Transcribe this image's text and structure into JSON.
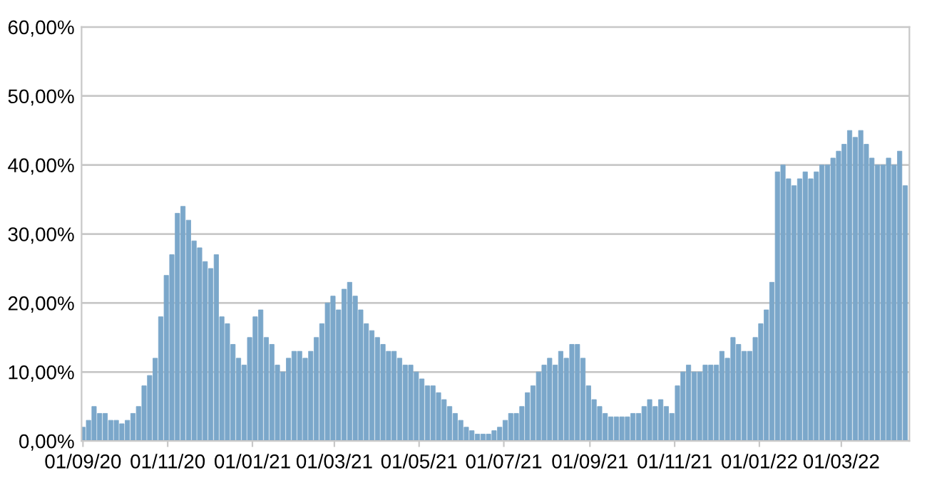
{
  "chart_data": {
    "type": "bar",
    "x": [
      "2020-09-01",
      "2020-09-05",
      "2020-09-09",
      "2020-09-13",
      "2020-09-17",
      "2020-09-21",
      "2020-09-25",
      "2020-09-29",
      "2020-10-03",
      "2020-10-07",
      "2020-10-11",
      "2020-10-15",
      "2020-10-19",
      "2020-10-23",
      "2020-10-27",
      "2020-10-31",
      "2020-11-04",
      "2020-11-08",
      "2020-11-12",
      "2020-11-16",
      "2020-11-20",
      "2020-11-24",
      "2020-11-28",
      "2020-12-02",
      "2020-12-06",
      "2020-12-10",
      "2020-12-14",
      "2020-12-18",
      "2020-12-22",
      "2020-12-26",
      "2020-12-30",
      "2021-01-03",
      "2021-01-07",
      "2021-01-11",
      "2021-01-15",
      "2021-01-19",
      "2021-01-23",
      "2021-01-27",
      "2021-01-31",
      "2021-02-04",
      "2021-02-08",
      "2021-02-12",
      "2021-02-16",
      "2021-02-20",
      "2021-02-24",
      "2021-02-28",
      "2021-03-04",
      "2021-03-08",
      "2021-03-12",
      "2021-03-16",
      "2021-03-20",
      "2021-03-24",
      "2021-03-28",
      "2021-04-01",
      "2021-04-05",
      "2021-04-09",
      "2021-04-13",
      "2021-04-17",
      "2021-04-21",
      "2021-04-25",
      "2021-04-29",
      "2021-05-03",
      "2021-05-07",
      "2021-05-11",
      "2021-05-15",
      "2021-05-19",
      "2021-05-23",
      "2021-05-27",
      "2021-05-31",
      "2021-06-04",
      "2021-06-08",
      "2021-06-12",
      "2021-06-16",
      "2021-06-20",
      "2021-06-24",
      "2021-06-28",
      "2021-07-02",
      "2021-07-06",
      "2021-07-10",
      "2021-07-14",
      "2021-07-18",
      "2021-07-22",
      "2021-07-26",
      "2021-07-30",
      "2021-08-03",
      "2021-08-07",
      "2021-08-11",
      "2021-08-15",
      "2021-08-19",
      "2021-08-23",
      "2021-08-27",
      "2021-08-31",
      "2021-09-04",
      "2021-09-08",
      "2021-09-12",
      "2021-09-16",
      "2021-09-20",
      "2021-09-24",
      "2021-09-28",
      "2021-10-02",
      "2021-10-06",
      "2021-10-10",
      "2021-10-14",
      "2021-10-18",
      "2021-10-22",
      "2021-10-26",
      "2021-10-30",
      "2021-11-03",
      "2021-11-07",
      "2021-11-11",
      "2021-11-15",
      "2021-11-19",
      "2021-11-23",
      "2021-11-27",
      "2021-12-01",
      "2021-12-05",
      "2021-12-09",
      "2021-12-13",
      "2021-12-17",
      "2021-12-21",
      "2021-12-25",
      "2021-12-29",
      "2022-01-02",
      "2022-01-06",
      "2022-01-10",
      "2022-01-14",
      "2022-01-18",
      "2022-01-22",
      "2022-01-26",
      "2022-01-30",
      "2022-02-03",
      "2022-02-07",
      "2022-02-11",
      "2022-02-15",
      "2022-02-19",
      "2022-02-23",
      "2022-02-27",
      "2022-03-03",
      "2022-03-07",
      "2022-03-11",
      "2022-03-15",
      "2022-03-19",
      "2022-03-23",
      "2022-03-27",
      "2022-03-31",
      "2022-04-04",
      "2022-04-08",
      "2022-04-12",
      "2022-04-16"
    ],
    "values": [
      2,
      3,
      5,
      4,
      4,
      3,
      3,
      2.5,
      3,
      4,
      5,
      8,
      9.5,
      12,
      18,
      24,
      27,
      33,
      34,
      32,
      29,
      28,
      26,
      25,
      27,
      18,
      17,
      14,
      12,
      11,
      15,
      18,
      19,
      15,
      14,
      11,
      10,
      12,
      13,
      13,
      12,
      13,
      15,
      17,
      20,
      21,
      19,
      22,
      23,
      21,
      19,
      17,
      16,
      15,
      14,
      13,
      13,
      12,
      11,
      11,
      10,
      9,
      8,
      8,
      7,
      6,
      5,
      4,
      3,
      2,
      1.5,
      1,
      1,
      1,
      1.5,
      2,
      3,
      4,
      4,
      5,
      7,
      8,
      10,
      11,
      12,
      11,
      13,
      12,
      14,
      14,
      12,
      8,
      6,
      5,
      4,
      3.5,
      3.5,
      3.5,
      3.5,
      4,
      4,
      5,
      6,
      5,
      6,
      5,
      4,
      8,
      10,
      11,
      10,
      10,
      11,
      11,
      11,
      13,
      12,
      15,
      14,
      13,
      13,
      15,
      17,
      19,
      23,
      39,
      40,
      38,
      37,
      38,
      39,
      38,
      39,
      40,
      40,
      41,
      42,
      43,
      45,
      44,
      45,
      43,
      41,
      40,
      40,
      41,
      40,
      42,
      37
    ],
    "color": "#7ba7ca",
    "xlim": [
      "2020-08-31",
      "2022-04-19"
    ],
    "xticks": [
      {
        "value": "2020-09-01",
        "label": "01/09/20"
      },
      {
        "value": "2020-11-01",
        "label": "01/11/20"
      },
      {
        "value": "2021-01-01",
        "label": "01/01/21"
      },
      {
        "value": "2021-03-01",
        "label": "01/03/21"
      },
      {
        "value": "2021-05-01",
        "label": "01/05/21"
      },
      {
        "value": "2021-07-01",
        "label": "01/07/21"
      },
      {
        "value": "2021-09-01",
        "label": "01/09/21"
      },
      {
        "value": "2021-11-01",
        "label": "01/11/21"
      },
      {
        "value": "2022-01-01",
        "label": "01/01/22"
      },
      {
        "value": "2022-03-01",
        "label": "01/03/22"
      }
    ],
    "ylim": [
      0,
      60
    ],
    "yticks": [
      {
        "value": 0,
        "label": "0,00%"
      },
      {
        "value": 10,
        "label": "10,00%"
      },
      {
        "value": 20,
        "label": "20,00%"
      },
      {
        "value": 30,
        "label": "30,00%"
      },
      {
        "value": 40,
        "label": "40,00%"
      },
      {
        "value": 50,
        "label": "50,00%"
      },
      {
        "value": 60,
        "label": "60,00%"
      }
    ],
    "grid": "y"
  }
}
